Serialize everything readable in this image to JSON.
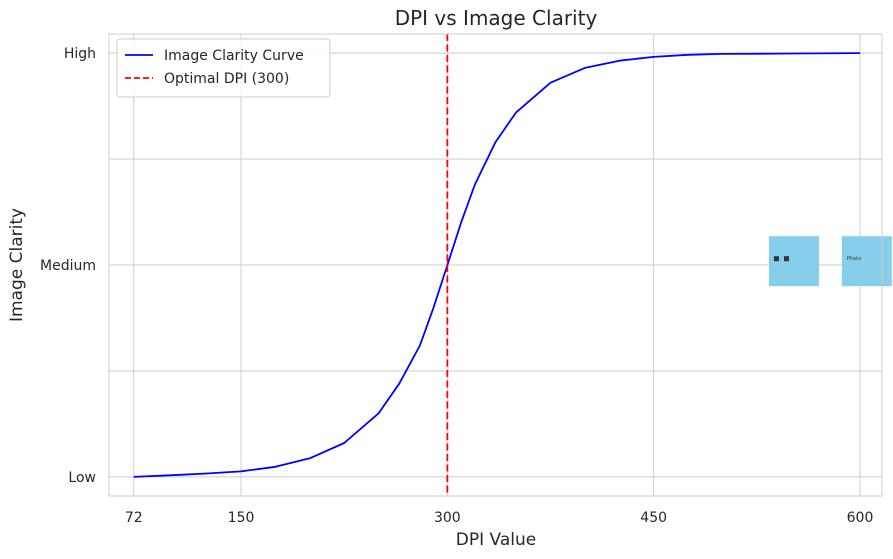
{
  "chart_data": {
    "type": "line",
    "title": "DPI vs Image Clarity",
    "xlabel": "DPI Value",
    "ylabel": "Image Clarity",
    "xlim": [
      54,
      616
    ],
    "ylim": [
      -0.045,
      1.045
    ],
    "xticks": [
      72,
      150,
      300,
      450,
      600
    ],
    "xtick_labels": [
      "72",
      "150",
      "300",
      "450",
      "600"
    ],
    "yticks": [
      0,
      0.5,
      1
    ],
    "ytick_labels": [
      "Low",
      "Medium",
      "High"
    ],
    "y_minor_gridlines": [
      0.25,
      0.75
    ],
    "grid": true,
    "legend_position": "upper-left",
    "series": [
      {
        "name": "Image Clarity Curve",
        "color": "#0000ff",
        "style": "solid",
        "x": [
          72,
          100,
          125,
          150,
          175,
          200,
          225,
          250,
          265,
          280,
          290,
          300,
          310,
          320,
          335,
          350,
          375,
          400,
          425,
          450,
          475,
          500,
          550,
          600
        ],
        "y": [
          0.0,
          0.004,
          0.008,
          0.013,
          0.024,
          0.044,
          0.08,
          0.15,
          0.22,
          0.31,
          0.4,
          0.5,
          0.6,
          0.69,
          0.79,
          0.86,
          0.93,
          0.965,
          0.982,
          0.991,
          0.996,
          0.998,
          0.999,
          1.0
        ]
      }
    ],
    "reference_lines": [
      {
        "name": "Optimal DPI (300)",
        "orientation": "vertical",
        "x": 300,
        "color": "#ff0000",
        "style": "dashed"
      }
    ],
    "annotations": [
      {
        "kind": "pixelated-image-icon",
        "x": 552,
        "y": 0.45,
        "color": "#87ceeb"
      },
      {
        "kind": "photo-image-icon",
        "x": 605,
        "y": 0.45,
        "color": "#87ceeb",
        "text": "Photo"
      }
    ]
  }
}
